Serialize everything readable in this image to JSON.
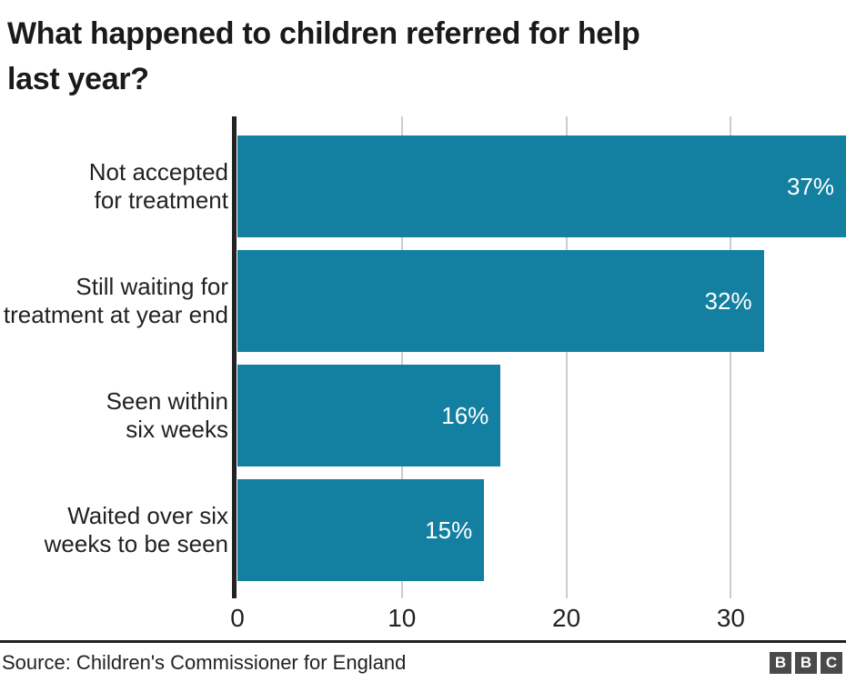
{
  "page": {
    "title_lines": [
      "What happened to children referred for help",
      "last year?"
    ],
    "source": "Source: Children's Commissioner for England",
    "logo_letters": [
      "B",
      "B",
      "C"
    ]
  },
  "chart_data": {
    "type": "bar",
    "orientation": "horizontal",
    "title": "What happened to children referred for help last year?",
    "categories": [
      "Not accepted for treatment",
      "Still waiting for treatment at year end",
      "Seen within six weeks",
      "Waited over six weeks to be seen"
    ],
    "values": [
      37,
      32,
      16,
      15
    ],
    "bars": [
      {
        "label_lines": [
          "Not accepted",
          "for treatment"
        ],
        "value": 37,
        "display": "37%"
      },
      {
        "label_lines": [
          "Still waiting for",
          "treatment at year end"
        ],
        "value": 32,
        "display": "32%"
      },
      {
        "label_lines": [
          "Seen within",
          "six weeks"
        ],
        "value": 16,
        "display": "16%"
      },
      {
        "label_lines": [
          "Waited over six",
          "weeks to be seen"
        ],
        "value": 15,
        "display": "15%"
      }
    ],
    "xlabel": "",
    "ylabel": "",
    "xlim": [
      0,
      37
    ],
    "xticks": [
      "0",
      "10",
      "20",
      "30"
    ],
    "xtick_values": [
      0,
      10,
      20,
      30
    ],
    "grid": "vertical gridlines at 10, 20, 30",
    "legend": "none",
    "value_label_position": "inside-end",
    "colors": {
      "bar": "#1380A1",
      "bar_label": "#ffffff",
      "axis_line": "#222222",
      "gridline": "#cccccc",
      "text": "#222222",
      "title": "#1a1a1a",
      "divider": "#222222",
      "logo_block": "#4a4a4a",
      "logo_letter": "#ffffff",
      "background": "#ffffff"
    }
  }
}
